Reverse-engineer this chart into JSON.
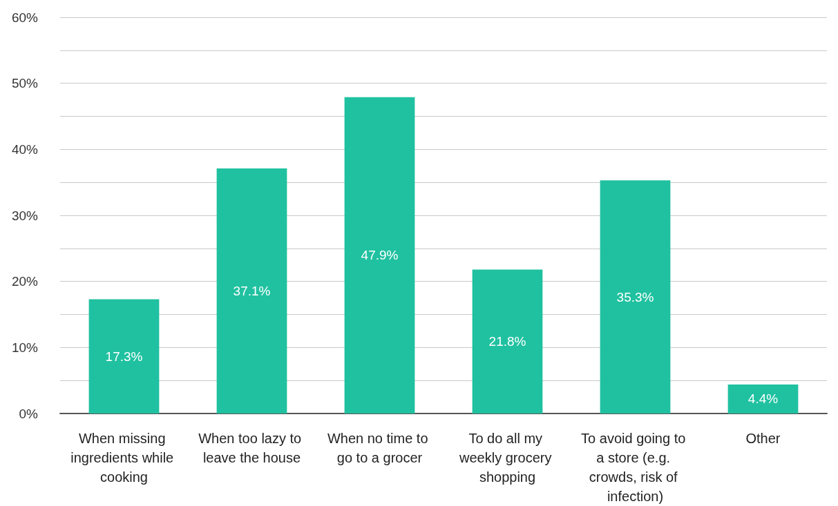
{
  "chart_data": {
    "type": "bar",
    "categories": [
      "When missing ingredients while cooking",
      "When too lazy to leave the house",
      "When no time to go to a grocer",
      "To do all my weekly grocery shopping",
      "To avoid going to a store (e.g. crowds, risk of infection)",
      "Other"
    ],
    "values": [
      17.3,
      37.1,
      47.9,
      21.8,
      35.3,
      4.4
    ],
    "value_labels": [
      "17.3%",
      "37.1%",
      "47.9%",
      "21.8%",
      "35.3%",
      "4.4%"
    ],
    "color": "#20c1a0",
    "ylim": [
      0,
      60
    ],
    "yticks": [
      {
        "value": 0,
        "label": "0%"
      },
      {
        "value": 5,
        "label": null
      },
      {
        "value": 10,
        "label": "10%"
      },
      {
        "value": 15,
        "label": null
      },
      {
        "value": 20,
        "label": "20%"
      },
      {
        "value": 25,
        "label": null
      },
      {
        "value": 30,
        "label": "30%"
      },
      {
        "value": 35,
        "label": null
      },
      {
        "value": 40,
        "label": "40%"
      },
      {
        "value": 45,
        "label": null
      },
      {
        "value": 50,
        "label": "50%"
      },
      {
        "value": 55,
        "label": null
      },
      {
        "value": 60,
        "label": "60%"
      }
    ],
    "grid": "y"
  }
}
